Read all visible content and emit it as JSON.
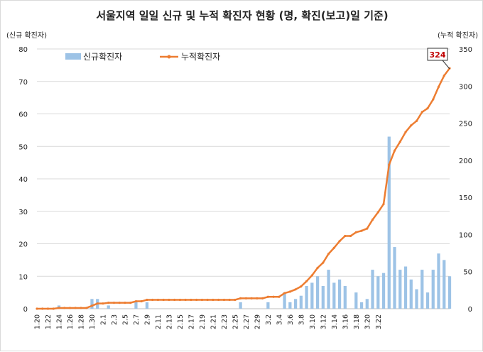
{
  "chart_data": {
    "type": "bar+line",
    "title": "서울지역 일일 신규 및 누적 확진자 현황 (명, 확진(보고)일 기준)",
    "y_left_label": "(신규 확진자)",
    "y_right_label": "(누적 확진자)",
    "y_left_lim": [
      0,
      80
    ],
    "y_right_lim": [
      0,
      350
    ],
    "y_left_ticks": [
      "0",
      "10",
      "20",
      "30",
      "40",
      "50",
      "60",
      "70",
      "80"
    ],
    "y_right_ticks": [
      "0",
      "50",
      "100",
      "150",
      "200",
      "250",
      "300",
      "350"
    ],
    "x_tick_labels": [
      "1.20",
      "1.22",
      "1.24",
      "1.26",
      "1.28",
      "1.30",
      "2.1",
      "2.3",
      "2.5",
      "2.7",
      "2.9",
      "2.11",
      "2.13",
      "2.15",
      "2.17",
      "2.19",
      "2.21",
      "2.23",
      "2.25",
      "2.27",
      "2.29",
      "3.2",
      "3.4",
      "3.6",
      "3.8",
      "3.10",
      "3.12",
      "3.14",
      "3.16",
      "3.18",
      "3.20",
      "3.22"
    ],
    "grid": "horizontal",
    "legend_position": "top-left",
    "annotation": "324",
    "colors": {
      "bar": "#9dc3e6",
      "line": "#ed7d31",
      "grid": "#d9d9d9",
      "callout_text": "#c00000"
    },
    "series": [
      {
        "name": "신규확진자",
        "kind": "bar",
        "axis": "left",
        "values": [
          0,
          0,
          0,
          0,
          1,
          0,
          0,
          0,
          0,
          0,
          3,
          3,
          0,
          1,
          0,
          0,
          0,
          0,
          2,
          0,
          2,
          0,
          0,
          0,
          0,
          0,
          0,
          0,
          0,
          0,
          0,
          0,
          0,
          0,
          0,
          0,
          0,
          2,
          0,
          0,
          0,
          0,
          2,
          0,
          0,
          5,
          2,
          3,
          4,
          7,
          8,
          10,
          7,
          12,
          8,
          9,
          7,
          0,
          5,
          2,
          3,
          12,
          10,
          11,
          53,
          19,
          12,
          13,
          9,
          6,
          12,
          5,
          12,
          17,
          15,
          10
        ]
      },
      {
        "name": "누적확진자",
        "kind": "line",
        "axis": "right",
        "values": [
          0,
          0,
          0,
          0,
          1,
          1,
          1,
          1,
          1,
          1,
          4,
          7,
          7,
          8,
          8,
          8,
          8,
          8,
          10,
          10,
          12,
          12,
          12,
          12,
          12,
          12,
          12,
          12,
          12,
          12,
          12,
          12,
          12,
          12,
          12,
          12,
          12,
          14,
          14,
          14,
          14,
          14,
          16,
          16,
          16,
          21,
          23,
          26,
          30,
          37,
          45,
          55,
          62,
          74,
          82,
          91,
          98,
          98,
          103,
          105,
          108,
          120,
          130,
          141,
          194,
          213,
          225,
          238,
          247,
          253,
          265,
          270,
          282,
          299,
          314,
          324
        ]
      }
    ]
  }
}
